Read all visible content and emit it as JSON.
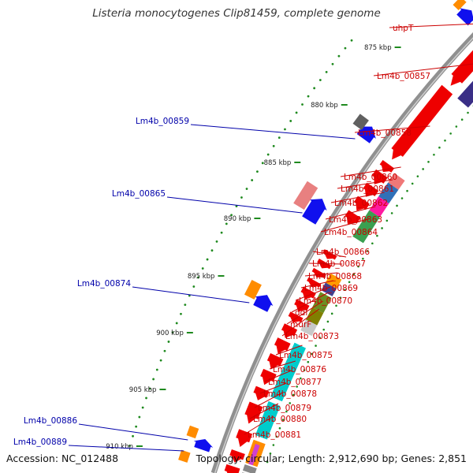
{
  "title": "Listeria monocytogenes Clip81459, complete genome",
  "footer": {
    "accession": "Accession: NC_012488",
    "summary": "Topology: circular; Length: 2,912,690 bp; Genes: 2,851"
  },
  "colors": {
    "backbone": "#8c8c8c",
    "tick": "#1f8a1f",
    "label_right": "#cc0000",
    "label_left": "#0000aa"
  },
  "scale_labels": [
    "875 kbp",
    "880 kbp",
    "885 kbp",
    "890 kbp",
    "895 kbp",
    "900 kbp",
    "905 kbp",
    "910 kbp"
  ],
  "gene_labels_right": [
    "uhpT",
    "Lm4b_00857",
    "Lm4b_00858",
    "Lm4b_00860",
    "Lm4b_00861",
    "Lm4b_00862",
    "Lm4b_00863",
    "Lm4b_00864",
    "Lm4b_00866",
    "Lm4b_00867",
    "Lm4b_00868",
    "Lm4b_00869",
    "Lm4b_00870",
    "ddl",
    "murF",
    "Lm4b_00873",
    "Lm4b_00875",
    "Lm4b_00876",
    "Lm4b_00877",
    "Lm4b_00878",
    "Lm4b_00879",
    "Lm4b_00880",
    "Lm4b_00881"
  ],
  "gene_labels_left": [
    "Lm4b_00859",
    "Lm4b_00865",
    "Lm4b_00874",
    "Lm4b_00886",
    "Lm4b_00889"
  ]
}
